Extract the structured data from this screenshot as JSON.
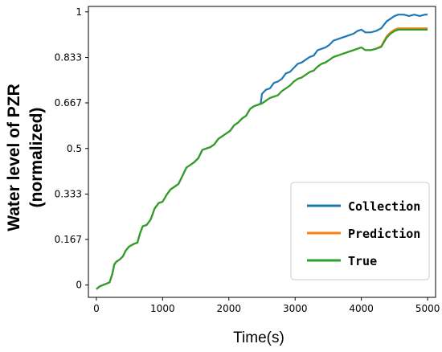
{
  "chart_data": {
    "type": "line",
    "xlabel": "Time(s)",
    "ylabel_line1": "Water level of PZR",
    "ylabel_line2": "(normalized)",
    "xlim": [
      -120,
      5120
    ],
    "ylim": [
      -0.045,
      1.02
    ],
    "x_ticks": [
      0,
      1000,
      2000,
      3000,
      4000,
      5000
    ],
    "x_tick_labels": [
      "0",
      "1000",
      "2000",
      "3000",
      "4000",
      "5000"
    ],
    "y_ticks": [
      0,
      0.167,
      0.333,
      0.5,
      0.667,
      0.833,
      1
    ],
    "y_tick_labels": [
      "0",
      "0.167",
      "0.333",
      "0.5",
      "0.667",
      "0.833",
      "1"
    ],
    "grid": false,
    "legend_position": "lower-right",
    "series": [
      {
        "name": "Collection",
        "color": "#1f77b4",
        "points": [
          [
            0,
            -0.015
          ],
          [
            50,
            -0.005
          ],
          [
            150,
            0.005
          ],
          [
            200,
            0.01
          ],
          [
            240,
            0.04
          ],
          [
            270,
            0.075
          ],
          [
            300,
            0.085
          ],
          [
            360,
            0.095
          ],
          [
            400,
            0.105
          ],
          [
            440,
            0.125
          ],
          [
            490,
            0.14
          ],
          [
            560,
            0.15
          ],
          [
            620,
            0.155
          ],
          [
            660,
            0.19
          ],
          [
            700,
            0.215
          ],
          [
            760,
            0.22
          ],
          [
            820,
            0.24
          ],
          [
            880,
            0.28
          ],
          [
            940,
            0.3
          ],
          [
            1000,
            0.305
          ],
          [
            1060,
            0.33
          ],
          [
            1120,
            0.35
          ],
          [
            1180,
            0.36
          ],
          [
            1240,
            0.37
          ],
          [
            1300,
            0.4
          ],
          [
            1360,
            0.43
          ],
          [
            1420,
            0.44
          ],
          [
            1480,
            0.45
          ],
          [
            1540,
            0.465
          ],
          [
            1600,
            0.495
          ],
          [
            1660,
            0.5
          ],
          [
            1720,
            0.505
          ],
          [
            1780,
            0.515
          ],
          [
            1840,
            0.535
          ],
          [
            1900,
            0.545
          ],
          [
            1960,
            0.555
          ],
          [
            2020,
            0.565
          ],
          [
            2080,
            0.585
          ],
          [
            2140,
            0.595
          ],
          [
            2200,
            0.61
          ],
          [
            2260,
            0.62
          ],
          [
            2320,
            0.645
          ],
          [
            2380,
            0.655
          ],
          [
            2440,
            0.66
          ],
          [
            2480,
            0.665
          ],
          [
            2500,
            0.7
          ],
          [
            2560,
            0.715
          ],
          [
            2620,
            0.72
          ],
          [
            2680,
            0.74
          ],
          [
            2740,
            0.745
          ],
          [
            2800,
            0.755
          ],
          [
            2860,
            0.775
          ],
          [
            2920,
            0.78
          ],
          [
            2980,
            0.795
          ],
          [
            3040,
            0.81
          ],
          [
            3100,
            0.815
          ],
          [
            3160,
            0.825
          ],
          [
            3220,
            0.835
          ],
          [
            3280,
            0.84
          ],
          [
            3340,
            0.86
          ],
          [
            3400,
            0.865
          ],
          [
            3460,
            0.87
          ],
          [
            3520,
            0.88
          ],
          [
            3580,
            0.895
          ],
          [
            3640,
            0.9
          ],
          [
            3700,
            0.905
          ],
          [
            3760,
            0.91
          ],
          [
            3820,
            0.915
          ],
          [
            3880,
            0.92
          ],
          [
            3940,
            0.93
          ],
          [
            4000,
            0.935
          ],
          [
            4060,
            0.925
          ],
          [
            4140,
            0.925
          ],
          [
            4220,
            0.93
          ],
          [
            4300,
            0.94
          ],
          [
            4380,
            0.965
          ],
          [
            4440,
            0.975
          ],
          [
            4500,
            0.985
          ],
          [
            4560,
            0.99
          ],
          [
            4640,
            0.99
          ],
          [
            4720,
            0.985
          ],
          [
            4800,
            0.99
          ],
          [
            4880,
            0.985
          ],
          [
            4960,
            0.99
          ],
          [
            5000,
            0.99
          ]
        ]
      },
      {
        "name": "Prediction",
        "color": "#ff7f0e",
        "points": [
          [
            0,
            -0.015
          ],
          [
            50,
            -0.005
          ],
          [
            150,
            0.005
          ],
          [
            200,
            0.01
          ],
          [
            240,
            0.04
          ],
          [
            270,
            0.075
          ],
          [
            300,
            0.085
          ],
          [
            360,
            0.095
          ],
          [
            400,
            0.105
          ],
          [
            440,
            0.125
          ],
          [
            490,
            0.14
          ],
          [
            560,
            0.15
          ],
          [
            620,
            0.155
          ],
          [
            660,
            0.19
          ],
          [
            700,
            0.215
          ],
          [
            760,
            0.22
          ],
          [
            820,
            0.24
          ],
          [
            880,
            0.28
          ],
          [
            940,
            0.3
          ],
          [
            1000,
            0.305
          ],
          [
            1060,
            0.33
          ],
          [
            1120,
            0.35
          ],
          [
            1180,
            0.36
          ],
          [
            1240,
            0.37
          ],
          [
            1300,
            0.4
          ],
          [
            1360,
            0.43
          ],
          [
            1420,
            0.44
          ],
          [
            1480,
            0.45
          ],
          [
            1540,
            0.465
          ],
          [
            1600,
            0.495
          ],
          [
            1660,
            0.5
          ],
          [
            1720,
            0.505
          ],
          [
            1780,
            0.515
          ],
          [
            1840,
            0.535
          ],
          [
            1900,
            0.545
          ],
          [
            1960,
            0.555
          ],
          [
            2020,
            0.565
          ],
          [
            2080,
            0.585
          ],
          [
            2140,
            0.595
          ],
          [
            2200,
            0.61
          ],
          [
            2260,
            0.62
          ],
          [
            2320,
            0.645
          ],
          [
            2380,
            0.655
          ],
          [
            2440,
            0.66
          ],
          [
            2500,
            0.665
          ],
          [
            2560,
            0.675
          ],
          [
            2620,
            0.685
          ],
          [
            2680,
            0.69
          ],
          [
            2740,
            0.695
          ],
          [
            2800,
            0.71
          ],
          [
            2860,
            0.72
          ],
          [
            2920,
            0.73
          ],
          [
            2980,
            0.745
          ],
          [
            3040,
            0.755
          ],
          [
            3100,
            0.76
          ],
          [
            3160,
            0.77
          ],
          [
            3220,
            0.78
          ],
          [
            3280,
            0.785
          ],
          [
            3340,
            0.8
          ],
          [
            3400,
            0.81
          ],
          [
            3460,
            0.815
          ],
          [
            3520,
            0.825
          ],
          [
            3580,
            0.835
          ],
          [
            3640,
            0.84
          ],
          [
            3700,
            0.845
          ],
          [
            3760,
            0.85
          ],
          [
            3820,
            0.855
          ],
          [
            3880,
            0.86
          ],
          [
            3940,
            0.865
          ],
          [
            4000,
            0.87
          ],
          [
            4060,
            0.86
          ],
          [
            4140,
            0.86
          ],
          [
            4220,
            0.865
          ],
          [
            4300,
            0.875
          ],
          [
            4380,
            0.91
          ],
          [
            4440,
            0.925
          ],
          [
            4500,
            0.935
          ],
          [
            4560,
            0.94
          ],
          [
            4640,
            0.94
          ],
          [
            4720,
            0.94
          ],
          [
            4800,
            0.94
          ],
          [
            4880,
            0.94
          ],
          [
            4960,
            0.94
          ],
          [
            5000,
            0.94
          ]
        ]
      },
      {
        "name": "True",
        "color": "#2ca02c",
        "points": [
          [
            0,
            -0.015
          ],
          [
            50,
            -0.005
          ],
          [
            150,
            0.005
          ],
          [
            200,
            0.01
          ],
          [
            240,
            0.04
          ],
          [
            270,
            0.075
          ],
          [
            300,
            0.085
          ],
          [
            360,
            0.095
          ],
          [
            400,
            0.105
          ],
          [
            440,
            0.125
          ],
          [
            490,
            0.14
          ],
          [
            560,
            0.15
          ],
          [
            620,
            0.155
          ],
          [
            660,
            0.19
          ],
          [
            700,
            0.215
          ],
          [
            760,
            0.22
          ],
          [
            820,
            0.24
          ],
          [
            880,
            0.28
          ],
          [
            940,
            0.3
          ],
          [
            1000,
            0.305
          ],
          [
            1060,
            0.33
          ],
          [
            1120,
            0.35
          ],
          [
            1180,
            0.36
          ],
          [
            1240,
            0.37
          ],
          [
            1300,
            0.4
          ],
          [
            1360,
            0.43
          ],
          [
            1420,
            0.44
          ],
          [
            1480,
            0.45
          ],
          [
            1540,
            0.465
          ],
          [
            1600,
            0.495
          ],
          [
            1660,
            0.5
          ],
          [
            1720,
            0.505
          ],
          [
            1780,
            0.515
          ],
          [
            1840,
            0.535
          ],
          [
            1900,
            0.545
          ],
          [
            1960,
            0.555
          ],
          [
            2020,
            0.565
          ],
          [
            2080,
            0.585
          ],
          [
            2140,
            0.595
          ],
          [
            2200,
            0.61
          ],
          [
            2260,
            0.62
          ],
          [
            2320,
            0.645
          ],
          [
            2380,
            0.655
          ],
          [
            2440,
            0.66
          ],
          [
            2500,
            0.665
          ],
          [
            2560,
            0.675
          ],
          [
            2620,
            0.685
          ],
          [
            2680,
            0.69
          ],
          [
            2740,
            0.695
          ],
          [
            2800,
            0.71
          ],
          [
            2860,
            0.72
          ],
          [
            2920,
            0.73
          ],
          [
            2980,
            0.745
          ],
          [
            3040,
            0.755
          ],
          [
            3100,
            0.76
          ],
          [
            3160,
            0.77
          ],
          [
            3220,
            0.78
          ],
          [
            3280,
            0.785
          ],
          [
            3340,
            0.8
          ],
          [
            3400,
            0.81
          ],
          [
            3460,
            0.815
          ],
          [
            3520,
            0.825
          ],
          [
            3580,
            0.835
          ],
          [
            3640,
            0.84
          ],
          [
            3700,
            0.845
          ],
          [
            3760,
            0.85
          ],
          [
            3820,
            0.855
          ],
          [
            3880,
            0.86
          ],
          [
            3940,
            0.865
          ],
          [
            4000,
            0.87
          ],
          [
            4060,
            0.86
          ],
          [
            4140,
            0.86
          ],
          [
            4220,
            0.865
          ],
          [
            4300,
            0.872
          ],
          [
            4380,
            0.905
          ],
          [
            4440,
            0.92
          ],
          [
            4500,
            0.93
          ],
          [
            4560,
            0.935
          ],
          [
            4640,
            0.935
          ],
          [
            4720,
            0.935
          ],
          [
            4800,
            0.935
          ],
          [
            4880,
            0.935
          ],
          [
            4960,
            0.935
          ],
          [
            5000,
            0.935
          ]
        ]
      }
    ]
  }
}
